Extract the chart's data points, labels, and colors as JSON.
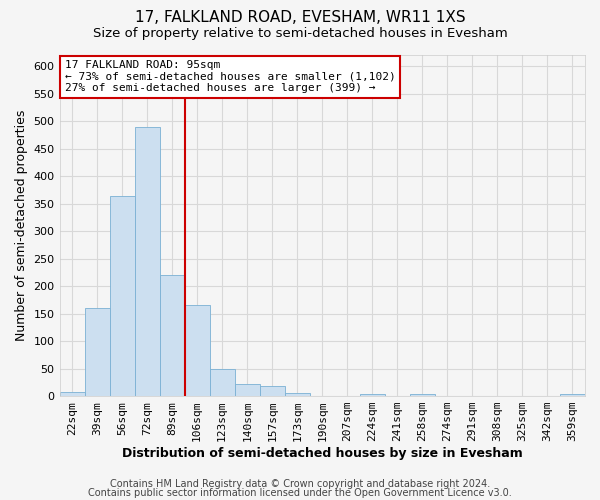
{
  "title1": "17, FALKLAND ROAD, EVESHAM, WR11 1XS",
  "title2": "Size of property relative to semi-detached houses in Evesham",
  "xlabel": "Distribution of semi-detached houses by size in Evesham",
  "ylabel": "Number of semi-detached properties",
  "bar_color": "#ccdff0",
  "bar_edge_color": "#7ab0d4",
  "categories": [
    "22sqm",
    "39sqm",
    "56sqm",
    "72sqm",
    "89sqm",
    "106sqm",
    "123sqm",
    "140sqm",
    "157sqm",
    "173sqm",
    "190sqm",
    "207sqm",
    "224sqm",
    "241sqm",
    "258sqm",
    "274sqm",
    "291sqm",
    "308sqm",
    "325sqm",
    "342sqm",
    "359sqm"
  ],
  "values": [
    8,
    160,
    363,
    490,
    220,
    165,
    49,
    22,
    19,
    6,
    0,
    0,
    4,
    0,
    4,
    0,
    0,
    0,
    0,
    0,
    4
  ],
  "ylim": [
    0,
    620
  ],
  "yticks": [
    0,
    50,
    100,
    150,
    200,
    250,
    300,
    350,
    400,
    450,
    500,
    550,
    600
  ],
  "prop_line_index": 4,
  "property_label": "17 FALKLAND ROAD: 95sqm",
  "annotation_line1": "← 73% of semi-detached houses are smaller (1,102)",
  "annotation_line2": "27% of semi-detached houses are larger (399) →",
  "annotation_box_color": "#ffffff",
  "annotation_box_edge_color": "#cc0000",
  "line_color": "#cc0000",
  "footer1": "Contains HM Land Registry data © Crown copyright and database right 2024.",
  "footer2": "Contains public sector information licensed under the Open Government Licence v3.0.",
  "background_color": "#f5f5f5",
  "plot_bg_color": "#f5f5f5",
  "grid_color": "#d8d8d8",
  "title1_fontsize": 11,
  "title2_fontsize": 9.5,
  "axis_label_fontsize": 9,
  "tick_fontsize": 8,
  "annot_fontsize": 8,
  "footer_fontsize": 7
}
